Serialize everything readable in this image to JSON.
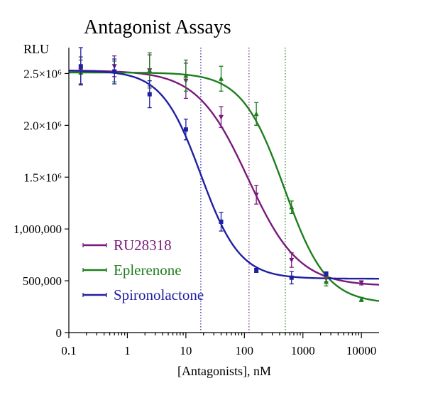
{
  "chart_data": {
    "type": "scatter",
    "title": "Antagonist Assays",
    "ylabel": "RLU",
    "xlabel": "[Antagonists], nM",
    "xscale": "log",
    "xlim": [
      0.1,
      20000
    ],
    "ylim": [
      0,
      2750000
    ],
    "x_ticks": [
      {
        "value": 0.1,
        "label": "0.1"
      },
      {
        "value": 1,
        "label": "1"
      },
      {
        "value": 10,
        "label": "10"
      },
      {
        "value": 100,
        "label": "100"
      },
      {
        "value": 1000,
        "label": "1000"
      },
      {
        "value": 10000,
        "label": "10000"
      }
    ],
    "y_ticks": [
      {
        "value": 0,
        "label": "0"
      },
      {
        "value": 500000,
        "label": "500,000"
      },
      {
        "value": 1000000,
        "label": "1,000,000"
      },
      {
        "value": 1500000,
        "label": "1.5×10⁶"
      },
      {
        "value": 2000000,
        "label": "2.0×10⁶"
      },
      {
        "value": 2500000,
        "label": "2.5×10⁶"
      }
    ],
    "legend_position": "bottom-left",
    "grid": false,
    "series": [
      {
        "name": "RU28318",
        "color": "#7a1a7a",
        "marker": "triangle-down",
        "fit": {
          "top": 2530000,
          "bottom": 450000,
          "ic50": 115,
          "hill": 1.0
        },
        "vline_x": 120,
        "points": [
          {
            "x": 0.16,
            "y": 2530000,
            "err": 130000
          },
          {
            "x": 0.6,
            "y": 2570000,
            "err": 100000
          },
          {
            "x": 2.4,
            "y": 2530000,
            "err": 150000
          },
          {
            "x": 10,
            "y": 2430000,
            "err": 170000
          },
          {
            "x": 40,
            "y": 2080000,
            "err": 100000
          },
          {
            "x": 160,
            "y": 1330000,
            "err": 90000
          },
          {
            "x": 640,
            "y": 700000,
            "err": 70000
          },
          {
            "x": 2500,
            "y": 520000,
            "err": 30000
          },
          {
            "x": 10000,
            "y": 480000,
            "err": 20000
          }
        ]
      },
      {
        "name": "Eplerenone",
        "color": "#1e7e1e",
        "marker": "triangle-up",
        "fit": {
          "top": 2510000,
          "bottom": 280000,
          "ic50": 480,
          "hill": 1.2
        },
        "vline_x": 500,
        "points": [
          {
            "x": 0.16,
            "y": 2510000,
            "err": 120000
          },
          {
            "x": 0.6,
            "y": 2520000,
            "err": 100000
          },
          {
            "x": 2.4,
            "y": 2530000,
            "err": 170000
          },
          {
            "x": 10,
            "y": 2480000,
            "err": 150000
          },
          {
            "x": 40,
            "y": 2450000,
            "err": 120000
          },
          {
            "x": 160,
            "y": 2110000,
            "err": 110000
          },
          {
            "x": 640,
            "y": 1210000,
            "err": 60000
          },
          {
            "x": 2500,
            "y": 490000,
            "err": 40000
          },
          {
            "x": 10000,
            "y": 320000,
            "err": 20000
          }
        ]
      },
      {
        "name": "Spironolactone",
        "color": "#1f1fa3",
        "marker": "square",
        "fit": {
          "top": 2530000,
          "bottom": 520000,
          "ic50": 18,
          "hill": 1.3
        },
        "vline_x": 18,
        "points": [
          {
            "x": 0.16,
            "y": 2570000,
            "err": 180000
          },
          {
            "x": 0.6,
            "y": 2520000,
            "err": 120000
          },
          {
            "x": 2.4,
            "y": 2300000,
            "err": 130000
          },
          {
            "x": 10,
            "y": 1960000,
            "err": 100000
          },
          {
            "x": 40,
            "y": 1070000,
            "err": 90000
          },
          {
            "x": 160,
            "y": 600000,
            "err": 20000
          },
          {
            "x": 640,
            "y": 530000,
            "err": 60000
          },
          {
            "x": 2500,
            "y": 570000,
            "err": 15000
          }
        ]
      }
    ]
  }
}
